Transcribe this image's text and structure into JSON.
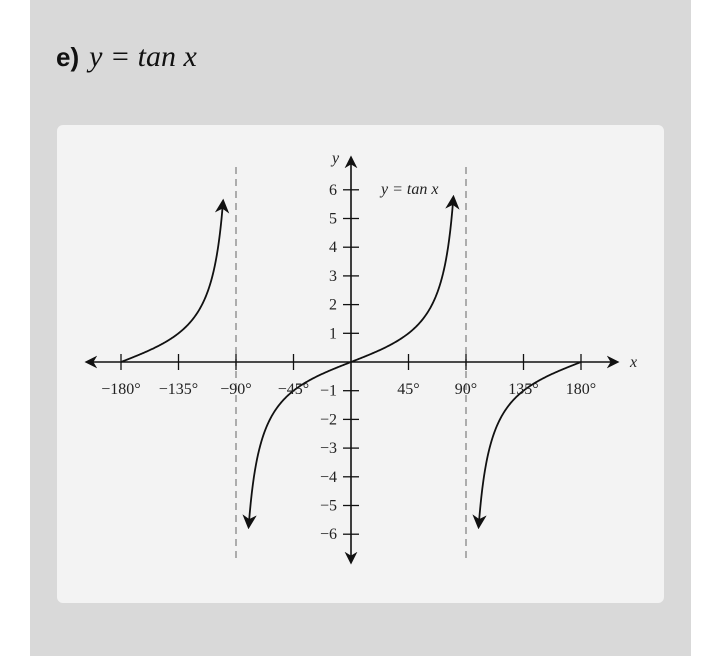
{
  "heading": {
    "label": "e)",
    "equation": "y = tan x"
  },
  "chart_data": {
    "type": "line",
    "function": "tan",
    "series": [
      {
        "name": "y = tan x",
        "x": [
          -180,
          -90
        ],
        "note": "branch 1, from (-180,0) rising toward +inf"
      },
      {
        "name": "y = tan x",
        "x": [
          -90,
          90
        ],
        "note": "branch 2, through origin"
      },
      {
        "name": "y = tan x",
        "x": [
          90,
          180
        ],
        "note": "branch 3, from -inf to (180,0)"
      }
    ],
    "asymptotes_x": [
      -90,
      90
    ],
    "xlim": [
      -200,
      200
    ],
    "ylim": [
      -7,
      7
    ],
    "xlabel": "x",
    "ylabel": "y",
    "curve_label": "y = tan x",
    "x_ticks": [
      {
        "value": -180,
        "label": "−180°"
      },
      {
        "value": -135,
        "label": "−135°"
      },
      {
        "value": -90,
        "label": "−90°"
      },
      {
        "value": -45,
        "label": "−45°"
      },
      {
        "value": 45,
        "label": "45°"
      },
      {
        "value": 90,
        "label": "90°"
      },
      {
        "value": 135,
        "label": "135°"
      },
      {
        "value": 180,
        "label": "180°"
      }
    ],
    "y_ticks": [
      {
        "value": 6,
        "label": "6"
      },
      {
        "value": 5,
        "label": "5"
      },
      {
        "value": 4,
        "label": "4"
      },
      {
        "value": 3,
        "label": "3"
      },
      {
        "value": 2,
        "label": "2"
      },
      {
        "value": 1,
        "label": "1"
      },
      {
        "value": -1,
        "label": "−1"
      },
      {
        "value": -2,
        "label": "−2"
      },
      {
        "value": -3,
        "label": "−3"
      },
      {
        "value": -4,
        "label": "−4"
      },
      {
        "value": -5,
        "label": "−5"
      },
      {
        "value": -6,
        "label": "−6"
      }
    ],
    "grid": false,
    "colors": {
      "curve": "#111111",
      "axis": "#111111",
      "asymptote": "#9a9a9a"
    }
  }
}
